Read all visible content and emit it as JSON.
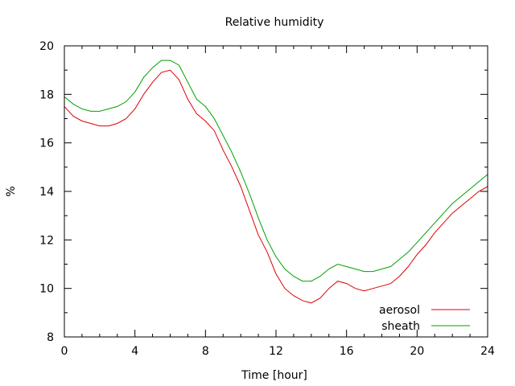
{
  "chart_data": {
    "type": "line",
    "title": "Relative humidity",
    "xlabel": "Time [hour]",
    "ylabel": "%",
    "xlim": [
      0,
      24
    ],
    "ylim": [
      8,
      20
    ],
    "xticks": [
      0,
      4,
      8,
      12,
      16,
      20,
      24
    ],
    "xtick_labels": [
      "0",
      "4",
      "8",
      "12",
      "16",
      "20",
      "24"
    ],
    "yticks": [
      8,
      10,
      12,
      14,
      16,
      18,
      20
    ],
    "ytick_labels": [
      "8",
      "10",
      "12",
      "14",
      "16",
      "18",
      "20"
    ],
    "grid": false,
    "legend": "bottom-right",
    "x": [
      0,
      0.5,
      1,
      1.5,
      2,
      2.5,
      3,
      3.5,
      4,
      4.5,
      5,
      5.5,
      6,
      6.5,
      7,
      7.5,
      8,
      8.5,
      9,
      9.5,
      10,
      10.5,
      11,
      11.5,
      12,
      12.5,
      13,
      13.5,
      14,
      14.5,
      15,
      15.5,
      16,
      16.5,
      17,
      17.5,
      18,
      18.5,
      19,
      19.5,
      20,
      20.5,
      21,
      21.5,
      22,
      22.5,
      23,
      23.5,
      24
    ],
    "series": [
      {
        "name": "aerosol",
        "color": "#e00000",
        "values": [
          17.5,
          17.1,
          16.9,
          16.8,
          16.7,
          16.7,
          16.8,
          17.0,
          17.4,
          18.0,
          18.5,
          18.9,
          19.0,
          18.6,
          17.8,
          17.2,
          16.9,
          16.5,
          15.7,
          15.0,
          14.2,
          13.2,
          12.2,
          11.5,
          10.6,
          10.0,
          9.7,
          9.5,
          9.4,
          9.6,
          10.0,
          10.3,
          10.2,
          10.0,
          9.9,
          10.0,
          10.1,
          10.2,
          10.5,
          10.9,
          11.4,
          11.8,
          12.3,
          12.7,
          13.1,
          13.4,
          13.7,
          14.0,
          14.2
        ]
      },
      {
        "name": "sheath",
        "color": "#00a000",
        "values": [
          17.9,
          17.6,
          17.4,
          17.3,
          17.3,
          17.4,
          17.5,
          17.7,
          18.1,
          18.7,
          19.1,
          19.4,
          19.4,
          19.2,
          18.5,
          17.8,
          17.5,
          17.0,
          16.3,
          15.6,
          14.8,
          13.9,
          12.9,
          12.0,
          11.3,
          10.8,
          10.5,
          10.3,
          10.3,
          10.5,
          10.8,
          11.0,
          10.9,
          10.8,
          10.7,
          10.7,
          10.8,
          10.9,
          11.2,
          11.5,
          11.9,
          12.3,
          12.7,
          13.1,
          13.5,
          13.8,
          14.1,
          14.4,
          14.7
        ]
      }
    ]
  }
}
